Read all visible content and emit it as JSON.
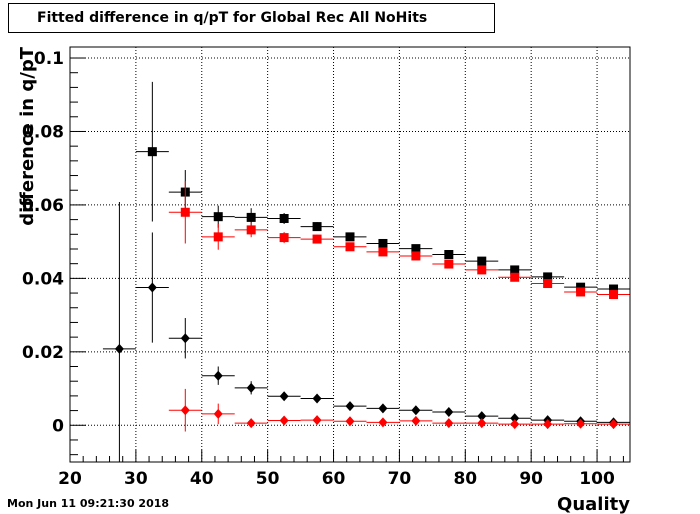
{
  "chart_data": {
    "type": "scatter",
    "title": "Fitted difference in q/pT for Global Rec All NoHits",
    "xlabel": "Quality",
    "ylabel": "difference in q/pT",
    "xlim": [
      20,
      105
    ],
    "ylim": [
      -0.01,
      0.103
    ],
    "x_ticks": [
      20,
      30,
      40,
      50,
      60,
      70,
      80,
      90,
      100
    ],
    "y_ticks": [
      0,
      0.02,
      0.04,
      0.06,
      0.08,
      0.1
    ],
    "x_tick_labels": [
      "20",
      "30",
      "40",
      "50",
      "60",
      "70",
      "80",
      "90",
      "100"
    ],
    "y_tick_labels": [
      "0",
      "0.02",
      "0.04",
      "0.06",
      "0.08",
      "0.1"
    ],
    "grid": true,
    "bin_half_width": 2.5,
    "series": [
      {
        "marker": "square",
        "color": "#000000",
        "x": [
          32.5,
          37.5,
          42.5,
          47.5,
          52.5,
          57.5,
          62.5,
          67.5,
          72.5,
          77.5,
          82.5,
          87.5,
          92.5,
          97.5,
          102.5
        ],
        "y": [
          0.0745,
          0.0635,
          0.0568,
          0.0566,
          0.0563,
          0.0541,
          0.0513,
          0.0495,
          0.0481,
          0.0465,
          0.0447,
          0.0423,
          0.0404,
          0.0376,
          0.0371
        ],
        "err": [
          0.019,
          0.006,
          0.003,
          0.0025,
          0.0015,
          0.0012,
          0.001,
          0.001,
          0.0008,
          0.0008,
          0.0008,
          0.0006,
          0.0006,
          0.0006,
          0.0006
        ]
      },
      {
        "marker": "square",
        "color": "#ff0000",
        "x": [
          37.5,
          42.5,
          47.5,
          52.5,
          57.5,
          62.5,
          67.5,
          72.5,
          77.5,
          82.5,
          87.5,
          92.5,
          97.5,
          102.5
        ],
        "y": [
          0.058,
          0.0513,
          0.0532,
          0.0511,
          0.0507,
          0.0486,
          0.0472,
          0.0461,
          0.0439,
          0.0423,
          0.0403,
          0.0386,
          0.0363,
          0.0356
        ],
        "err": [
          0.0085,
          0.0035,
          0.002,
          0.0015,
          0.0012,
          0.001,
          0.001,
          0.0008,
          0.0008,
          0.0008,
          0.0006,
          0.0006,
          0.0006,
          0.0006
        ]
      },
      {
        "marker": "diamond",
        "color": "#000000",
        "x": [
          27.5,
          32.5,
          37.5,
          42.5,
          47.5,
          52.5,
          57.5,
          62.5,
          67.5,
          72.5,
          77.5,
          82.5,
          87.5,
          92.5,
          97.5,
          102.5
        ],
        "y": [
          0.0208,
          0.0375,
          0.0237,
          0.0135,
          0.0102,
          0.0079,
          0.0073,
          0.0052,
          0.0046,
          0.0041,
          0.0036,
          0.0025,
          0.0019,
          0.0014,
          0.0011,
          0.0008
        ],
        "err": [
          0.04,
          0.015,
          0.0055,
          0.0025,
          0.0018,
          0.001,
          0.0008,
          0.0006,
          0.0005,
          0.0005,
          0.0004,
          0.0004,
          0.0004,
          0.0003,
          0.0003,
          0.0003
        ]
      },
      {
        "marker": "diamond",
        "color": "#ff0000",
        "x": [
          37.5,
          42.5,
          47.5,
          52.5,
          57.5,
          62.5,
          67.5,
          72.5,
          77.5,
          82.5,
          87.5,
          92.5,
          97.5,
          102.5
        ],
        "y": [
          0.0041,
          0.0031,
          0.0006,
          0.0013,
          0.0014,
          0.0011,
          0.0008,
          0.0012,
          0.0006,
          0.0006,
          0.0003,
          0.0003,
          0.0004,
          0.0003
        ],
        "err": [
          0.0058,
          0.0028,
          0.0012,
          0.0008,
          0.0006,
          0.0005,
          0.0004,
          0.0004,
          0.0003,
          0.0003,
          0.0003,
          0.0003,
          0.0003,
          0.0003
        ]
      }
    ]
  },
  "footer": {
    "timestamp": "Mon Jun 11 09:21:30 2018"
  }
}
